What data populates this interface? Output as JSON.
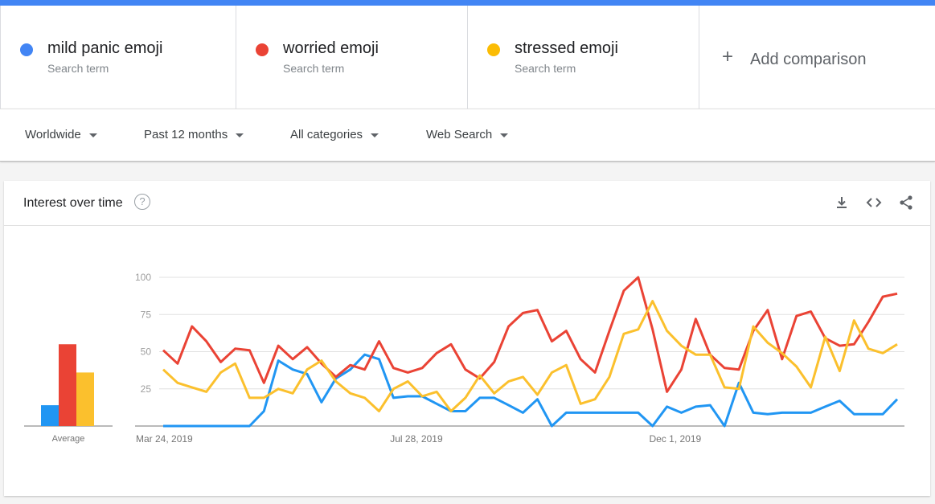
{
  "terms": [
    {
      "name": "mild panic emoji",
      "sub": "Search term",
      "color": "#4285f4"
    },
    {
      "name": "worried emoji",
      "sub": "Search term",
      "color": "#ea4335"
    },
    {
      "name": "stressed emoji",
      "sub": "Search term",
      "color": "#fbbc04"
    }
  ],
  "add_comparison": "Add comparison",
  "filters": {
    "region": "Worldwide",
    "time": "Past 12 months",
    "category": "All categories",
    "property": "Web Search"
  },
  "card": {
    "title": "Interest over time",
    "help_icon": "question-icon",
    "tools": [
      "download-icon",
      "embed-code-icon",
      "share-icon"
    ]
  },
  "chart_data": {
    "type": "line",
    "ylim": [
      0,
      100
    ],
    "y_ticks": [
      "100",
      "75",
      "50",
      "25"
    ],
    "x_tick_labels": [
      "Mar 24, 2019",
      "Jul 28, 2019",
      "Dec 1, 2019"
    ],
    "x_tick_index": [
      0,
      18,
      36
    ],
    "series": [
      {
        "name": "mild panic emoji",
        "color": "#2196f3",
        "values": [
          0,
          0,
          0,
          0,
          0,
          0,
          0,
          10,
          44,
          38,
          35,
          16,
          32,
          38,
          48,
          45,
          19,
          20,
          20,
          15,
          10,
          10,
          19,
          19,
          14,
          9,
          18,
          0,
          9,
          9,
          9,
          9,
          9,
          9,
          0,
          13,
          9,
          13,
          14,
          0,
          29,
          9,
          8,
          9,
          9,
          9,
          13,
          17,
          8,
          8,
          8,
          18
        ]
      },
      {
        "name": "worried emoji",
        "color": "#ea4335",
        "values": [
          51,
          42,
          67,
          57,
          43,
          52,
          51,
          29,
          54,
          45,
          53,
          42,
          33,
          41,
          38,
          57,
          39,
          36,
          39,
          49,
          55,
          38,
          32,
          43,
          67,
          76,
          78,
          57,
          64,
          45,
          36,
          64,
          91,
          100,
          65,
          23,
          38,
          72,
          48,
          39,
          38,
          64,
          78,
          45,
          74,
          77,
          59,
          54,
          55,
          70,
          87,
          89
        ]
      },
      {
        "name": "stressed emoji",
        "color": "#fbc02d",
        "values": [
          38,
          29,
          26,
          23,
          36,
          42,
          19,
          19,
          25,
          22,
          38,
          44,
          30,
          22,
          19,
          10,
          25,
          30,
          20,
          23,
          10,
          19,
          34,
          22,
          30,
          33,
          21,
          36,
          41,
          15,
          18,
          33,
          62,
          65,
          84,
          64,
          54,
          48,
          48,
          26,
          25,
          67,
          56,
          49,
          40,
          26,
          60,
          37,
          71,
          52,
          49,
          55
        ]
      }
    ],
    "average": [
      14,
      55,
      36
    ]
  }
}
